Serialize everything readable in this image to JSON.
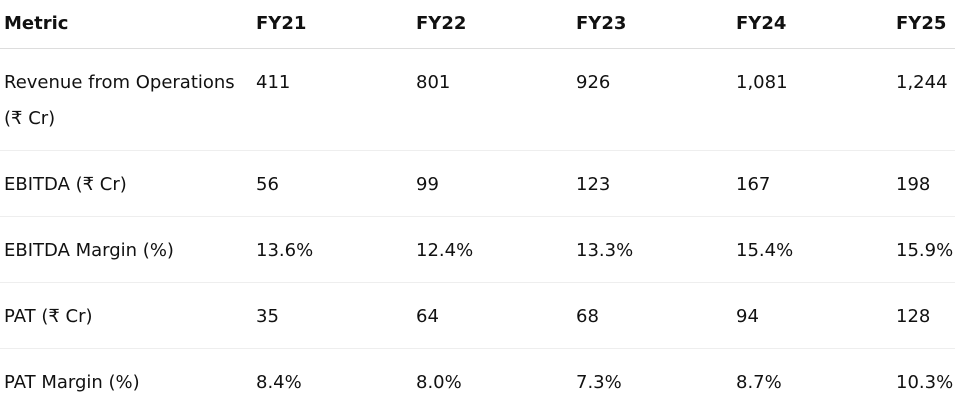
{
  "table": {
    "header": [
      "Metric",
      "FY21",
      "FY22",
      "FY23",
      "FY24",
      "FY25"
    ],
    "rows": [
      [
        "Revenue from Operations (₹ Cr)",
        "411",
        "801",
        "926",
        "1,081",
        "1,244"
      ],
      [
        "EBITDA (₹ Cr)",
        "56",
        "99",
        "123",
        "167",
        "198"
      ],
      [
        "EBITDA Margin (%)",
        "13.6%",
        "12.4%",
        "13.3%",
        "15.4%",
        "15.9%"
      ],
      [
        "PAT (₹ Cr)",
        "35",
        "64",
        "68",
        "94",
        "128"
      ],
      [
        "PAT Margin (%)",
        "8.4%",
        "8.0%",
        "7.3%",
        "8.7%",
        "10.3%"
      ]
    ]
  }
}
